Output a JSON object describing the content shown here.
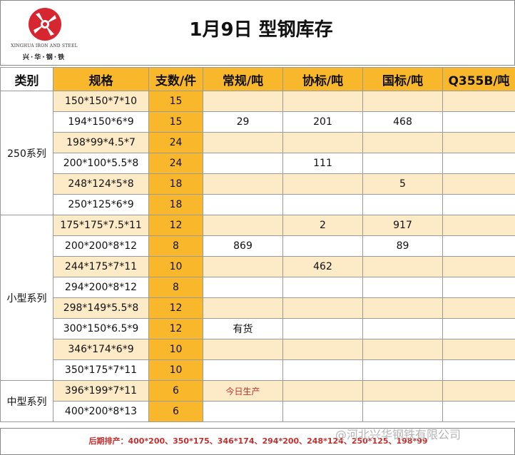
{
  "logo": {
    "icon": "xinghua-logo-icon",
    "english": "XINGHUA IRON AND STEEL",
    "chinese": "兴·华·钢·铁",
    "color": "#d6262f"
  },
  "title": "1月9日  型钢库存",
  "table": {
    "headers": [
      "类别",
      "规格",
      "支数/件",
      "常规/吨",
      "协标/吨",
      "国标/吨",
      "Q355B/吨"
    ],
    "groups": [
      {
        "category": "250系列",
        "rows": [
          {
            "spec": "150*150*7*10",
            "qty": "15",
            "regular": "",
            "assoc": "",
            "national": "",
            "q355b": ""
          },
          {
            "spec": "194*150*6*9",
            "qty": "15",
            "regular": "29",
            "assoc": "201",
            "national": "468",
            "q355b": ""
          },
          {
            "spec": "198*99*4.5*7",
            "qty": "24",
            "regular": "",
            "assoc": "",
            "national": "",
            "q355b": ""
          },
          {
            "spec": "200*100*5.5*8",
            "qty": "24",
            "regular": "",
            "assoc": "111",
            "national": "",
            "q355b": ""
          },
          {
            "spec": "248*124*5*8",
            "qty": "18",
            "regular": "",
            "assoc": "",
            "national": "5",
            "q355b": ""
          },
          {
            "spec": "250*125*6*9",
            "qty": "18",
            "regular": "",
            "assoc": "",
            "national": "",
            "q355b": ""
          }
        ]
      },
      {
        "category": "小型系列",
        "rows": [
          {
            "spec": "175*175*7.5*11",
            "qty": "12",
            "regular": "",
            "assoc": "2",
            "national": "917",
            "q355b": ""
          },
          {
            "spec": "200*200*8*12",
            "qty": "8",
            "regular": "869",
            "assoc": "",
            "national": "89",
            "q355b": ""
          },
          {
            "spec": "244*175*7*11",
            "qty": "10",
            "regular": "",
            "assoc": "462",
            "national": "",
            "q355b": ""
          },
          {
            "spec": "294*200*8*12",
            "qty": "8",
            "regular": "",
            "assoc": "",
            "national": "",
            "q355b": ""
          },
          {
            "spec": "298*149*5.5*8",
            "qty": "12",
            "regular": "",
            "assoc": "",
            "national": "",
            "q355b": ""
          },
          {
            "spec": "300*150*6.5*9",
            "qty": "12",
            "regular": "有货",
            "assoc": "",
            "national": "",
            "q355b": ""
          },
          {
            "spec": "346*174*6*9",
            "qty": "10",
            "regular": "",
            "assoc": "",
            "national": "",
            "q355b": ""
          },
          {
            "spec": "350*175*7*11",
            "qty": "10",
            "regular": "",
            "assoc": "",
            "national": "",
            "q355b": ""
          }
        ]
      },
      {
        "category": "中型系列",
        "rows": [
          {
            "spec": "396*199*7*11",
            "qty": "6",
            "regular": "今日生产",
            "assoc": "",
            "national": "",
            "q355b": ""
          },
          {
            "spec": "400*200*8*13",
            "qty": "6",
            "regular": "",
            "assoc": "",
            "national": "",
            "q355b": ""
          }
        ]
      }
    ]
  },
  "footer": {
    "schedule": "后期排产：400*200、350*175、346*174、294*200、248*124、250*125、198*99",
    "watermark": "@河北兴华钢铁有限公司"
  },
  "colors": {
    "header_orange": "#f9b82b",
    "stripe": "#fdebc8",
    "note_red": "#c0302f"
  }
}
